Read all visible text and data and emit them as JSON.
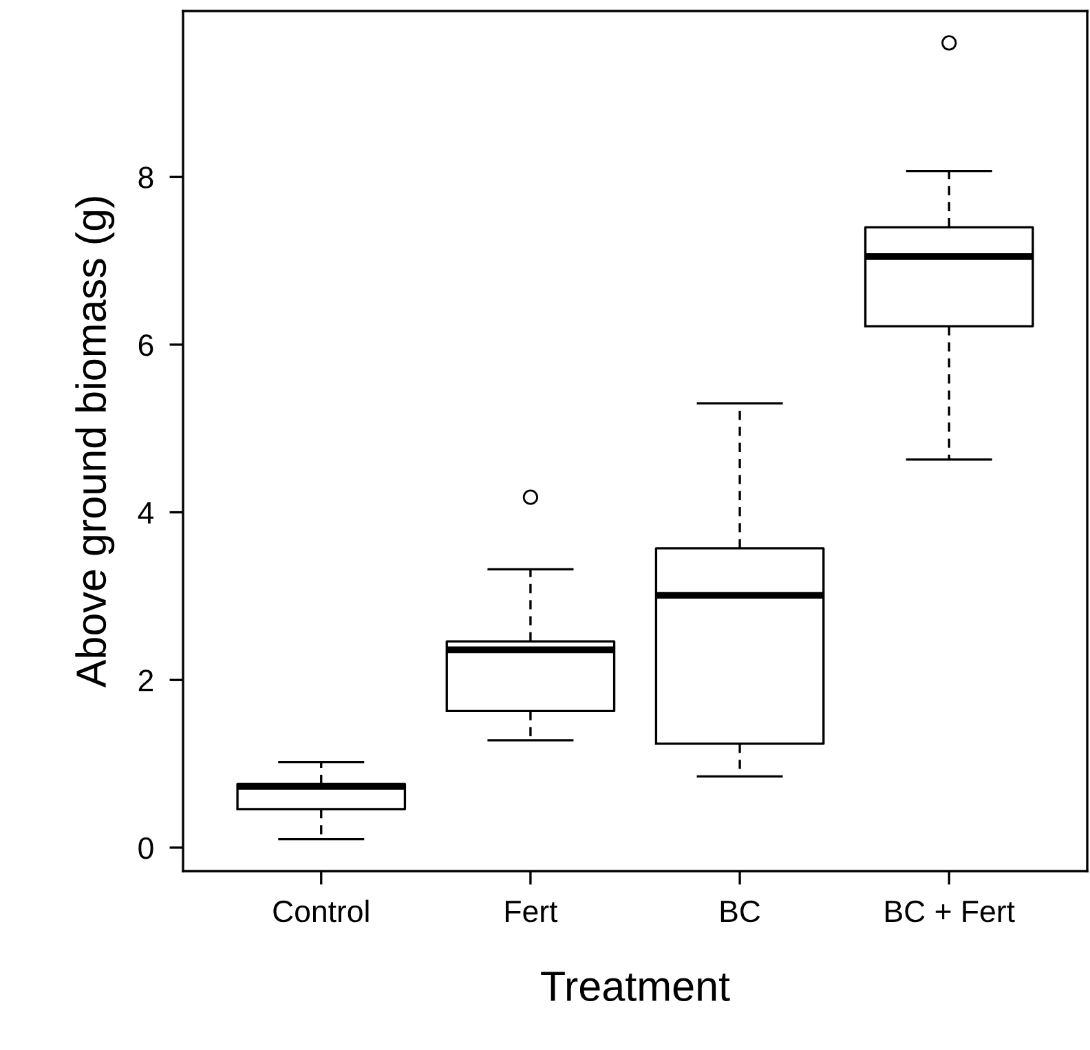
{
  "chart_data": {
    "type": "box",
    "xlabel": "Treatment",
    "ylabel": "Above ground biomass (g)",
    "categories": [
      "Control",
      "Fert",
      "BC",
      "BC + Fert"
    ],
    "boxes": [
      {
        "low": 0.1,
        "q1": 0.46,
        "median": 0.73,
        "q3": 0.76,
        "high": 1.02
      },
      {
        "low": 1.28,
        "q1": 1.63,
        "median": 2.36,
        "q3": 2.46,
        "high": 3.32,
        "outliers": [
          4.18
        ]
      },
      {
        "low": 0.85,
        "q1": 1.24,
        "median": 3.01,
        "q3": 3.57,
        "high": 5.3
      },
      {
        "low": 4.63,
        "q1": 6.22,
        "median": 7.05,
        "q3": 7.4,
        "high": 8.07,
        "outliers": [
          9.6
        ]
      }
    ],
    "ylim": [
      -0.28,
      9.98
    ],
    "yticks": [
      0,
      2,
      4,
      6,
      8
    ],
    "grid": false,
    "line_style": "dashed"
  }
}
